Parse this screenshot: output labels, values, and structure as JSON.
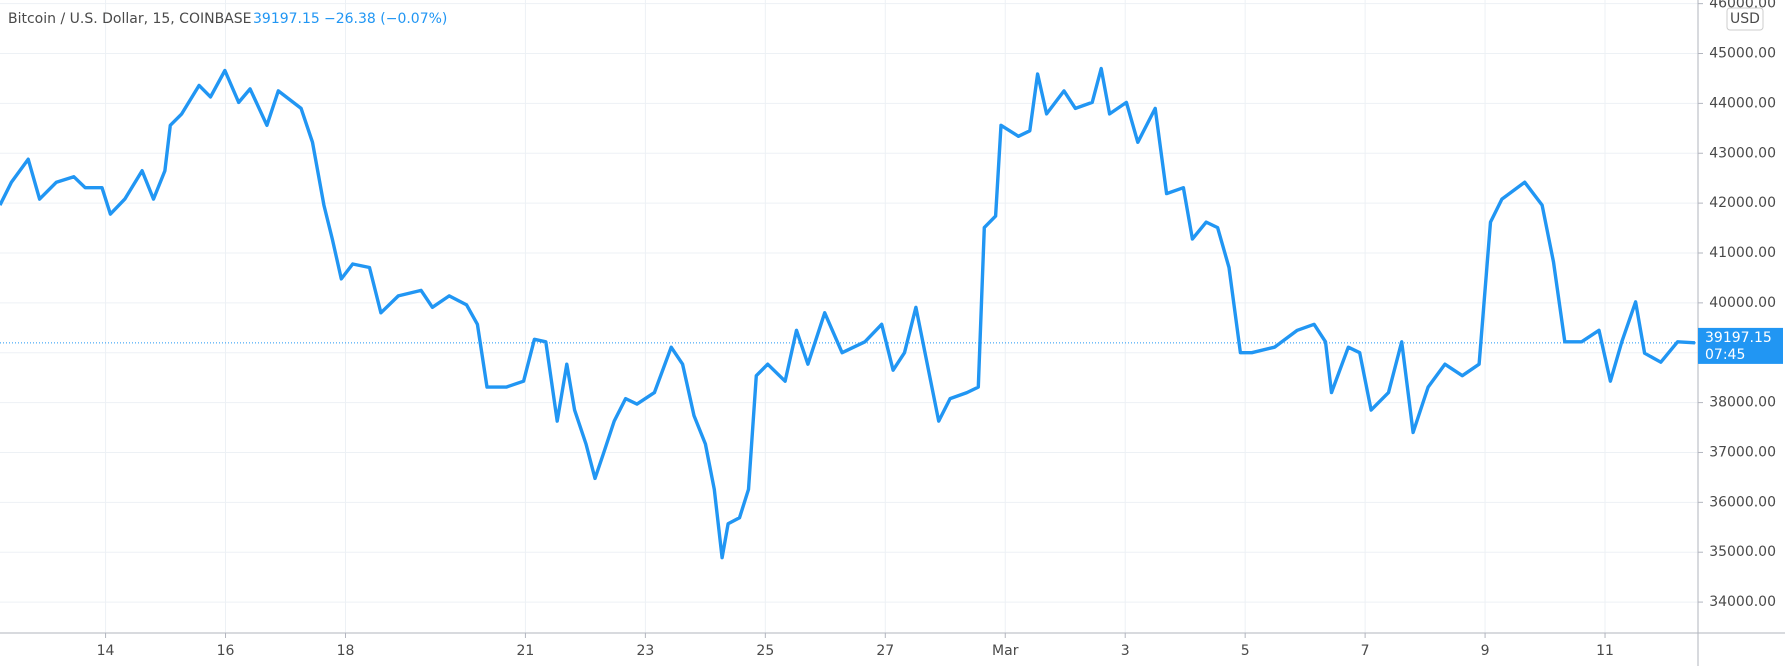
{
  "chart_data": {
    "type": "line",
    "title": "Bitcoin / U.S. Dollar, 15, COINBASE",
    "last_value": 39197.15,
    "change_label": "−26.38 (−0.07%)",
    "countdown": "07:45",
    "currency": "USD",
    "color": "#2196f3",
    "grid": true,
    "x": [
      12.24,
      12.43,
      12.71,
      12.9,
      13.18,
      13.47,
      13.66,
      13.94,
      14.08,
      14.32,
      14.61,
      14.8,
      14.99,
      15.08,
      15.27,
      15.56,
      15.75,
      15.99,
      16.22,
      16.41,
      16.69,
      16.88,
      17.26,
      17.45,
      17.64,
      17.78,
      17.93,
      18.12,
      18.4,
      18.59,
      18.88,
      19.26,
      19.45,
      19.73,
      20.02,
      20.2,
      20.36,
      20.68,
      20.97,
      21.15,
      21.34,
      21.53,
      21.69,
      21.82,
      22.01,
      22.16,
      22.29,
      22.48,
      22.67,
      22.86,
      23.15,
      23.43,
      23.62,
      23.81,
      24.0,
      24.15,
      24.28,
      24.38,
      24.57,
      24.72,
      24.85,
      25.04,
      25.33,
      25.52,
      25.71,
      25.99,
      26.28,
      26.66,
      26.94,
      27.13,
      27.32,
      27.51,
      27.7,
      27.89,
      28.08,
      28.36,
      28.55,
      28.65,
      28.84,
      28.93,
      29.22,
      29.41,
      29.54,
      29.69,
      29.98,
      30.17,
      30.45,
      30.6,
      30.74,
      31.02,
      31.21,
      31.5,
      31.69,
      31.97,
      32.12,
      32.35,
      32.54,
      32.73,
      32.92,
      33.11,
      33.49,
      33.87,
      34.15,
      34.34,
      34.44,
      34.72,
      34.91,
      35.1,
      35.39,
      35.61,
      35.8,
      36.05,
      36.33,
      36.62,
      36.9,
      37.09,
      37.28,
      37.66,
      37.95,
      38.14,
      38.33,
      38.61,
      38.9,
      39.09,
      39.28,
      39.51,
      39.66,
      39.93,
      40.21,
      40.5
    ],
    "values": [
      41960,
      42420,
      42880,
      42080,
      42420,
      42530,
      42310,
      42310,
      41780,
      42080,
      42650,
      42080,
      42650,
      43560,
      43790,
      44360,
      44130,
      44660,
      44020,
      44290,
      43560,
      44250,
      43900,
      43220,
      41960,
      41280,
      40480,
      40780,
      40710,
      39800,
      40140,
      40250,
      39910,
      40140,
      39960,
      39570,
      38310,
      38310,
      38430,
      39270,
      39220,
      37630,
      38770,
      37850,
      37170,
      36480,
      36940,
      37630,
      38080,
      37970,
      38200,
      39110,
      38770,
      37740,
      37170,
      36260,
      34890,
      35570,
      35690,
      36260,
      38540,
      38770,
      38430,
      39450,
      38770,
      39800,
      39000,
      39220,
      39570,
      38650,
      39000,
      39910,
      38770,
      37630,
      38080,
      38200,
      38310,
      41510,
      41740,
      43560,
      43340,
      43450,
      44590,
      43790,
      44250,
      43900,
      44020,
      44700,
      43790,
      44020,
      43220,
      43900,
      42190,
      42310,
      41280,
      41620,
      41510,
      40710,
      39000,
      39000,
      39110,
      39450,
      39570,
      39220,
      38200,
      39110,
      39000,
      37850,
      38200,
      39220,
      37400,
      38310,
      38770,
      38540,
      38770,
      41620,
      42080,
      42420,
      41960,
      40820,
      39220,
      39220,
      39450,
      38430,
      39220,
      40020,
      38990,
      38810,
      39220,
      39200
    ],
    "xlim": [
      12.24,
      40.55
    ],
    "ylim": [
      33380,
      46073
    ],
    "xticks": [
      14,
      16,
      18,
      21,
      23,
      25,
      27,
      {
        "value": 29,
        "label": "Mar"
      },
      {
        "value": 31,
        "label": "3"
      },
      {
        "value": 33,
        "label": "5"
      },
      {
        "value": 35,
        "label": "7"
      },
      {
        "value": 37,
        "label": "9"
      },
      {
        "value": 39,
        "label": "11"
      }
    ],
    "yticks": [
      {
        "value": 34000,
        "label": "34000.00"
      },
      {
        "value": 35000,
        "label": "35000.00"
      },
      {
        "value": 36000,
        "label": "36000.00"
      },
      {
        "value": 37000,
        "label": "37000.00"
      },
      {
        "value": 38000,
        "label": "38000.00"
      },
      {
        "value": 39000,
        "label": "39000.00"
      },
      {
        "value": 40000,
        "label": "40000.00"
      },
      {
        "value": 41000,
        "label": "41000.00"
      },
      {
        "value": 42000,
        "label": "42000.00"
      },
      {
        "value": 43000,
        "label": "43000.00"
      },
      {
        "value": 44000,
        "label": "44000.00"
      },
      {
        "value": 45000,
        "label": "45000.00"
      },
      {
        "value": 46000,
        "label": "46000.00"
      }
    ]
  }
}
